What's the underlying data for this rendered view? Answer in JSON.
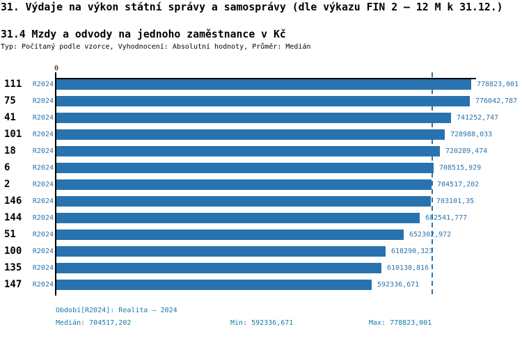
{
  "page": {
    "title": "31. Výdaje na výkon státní správy a samosprávy (dle výkazu FIN 2 – 12 M k 31.12.)",
    "subtitle": "31.4 Mzdy a odvody na jednoho zaměstnance v Kč",
    "type_line": "Typ: Počítaný podle vzorce, Vyhodnocení: Absolutní hodnoty, Průměr: Medián"
  },
  "chart_data": {
    "type": "bar",
    "orientation": "horizontal",
    "title": "31.4 Mzdy a odvody na jednoho zaměstnance v Kč",
    "xlabel": "",
    "ylabel": "",
    "axis_zero_label": "0",
    "series_period": "R2024",
    "categories": [
      "111",
      "75",
      "41",
      "101",
      "18",
      "6",
      "2",
      "146",
      "144",
      "51",
      "100",
      "135",
      "147"
    ],
    "values": [
      778823.001,
      776042.787,
      741252.747,
      728988.033,
      720289.474,
      708515.929,
      704517.202,
      703101.35,
      682541.777,
      652302.972,
      618290.323,
      610138.816,
      592336.671
    ],
    "value_labels": [
      "778823,001",
      "776042,787",
      "741252,747",
      "728988,033",
      "720289,474",
      "708515,929",
      "704517,202",
      "703101,35",
      "682541,777",
      "652302,972",
      "618290,323",
      "610138,816",
      "592336,671"
    ],
    "xlim": [
      0,
      778823.001
    ],
    "median": 704517.202,
    "grid": false,
    "legend_position": "none"
  },
  "colors": {
    "bar": "#2873af",
    "value_label": "#2873af",
    "footer_text": "#1578a5"
  },
  "footer": {
    "period_line": "Období[R2024]: Realita – 2024",
    "median_label": "Medián: 704517,202",
    "min_label": "Min: 592336,671",
    "max_label": "Max: 778823,001"
  }
}
